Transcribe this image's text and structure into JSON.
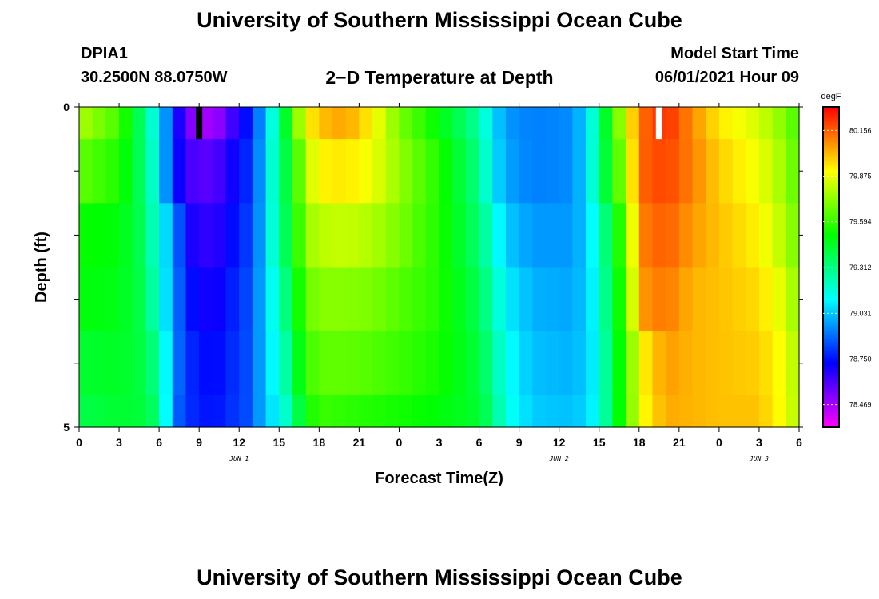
{
  "header": {
    "title": "University of Southern Mississippi Ocean Cube",
    "station_id": "DPIA1",
    "coords": "30.2500N  88.0750W",
    "plot_title": "2−D Temperature at Depth",
    "start_label": "Model Start Time",
    "start_value": "06/01/2021 Hour 09"
  },
  "footer": {
    "title": "University of Southern Mississippi Ocean Cube"
  },
  "chart_data": {
    "type": "heatmap",
    "xlabel": "Forecast Time(Z)",
    "ylabel": "Depth (ft)",
    "x_hours_range": [
      0,
      54
    ],
    "ylim": [
      0,
      5
    ],
    "y_tick_labels": [
      {
        "value": 0,
        "label": "0"
      },
      {
        "value": 5,
        "label": "5"
      }
    ],
    "x_tick_labels": [
      "0",
      "3",
      "6",
      "9",
      "12",
      "15",
      "18",
      "21",
      "0",
      "3",
      "6",
      "9",
      "12",
      "15",
      "18",
      "21",
      "0",
      "3",
      "6"
    ],
    "date_labels": [
      {
        "hour": 12,
        "label": "JUN 1"
      },
      {
        "hour": 36,
        "label": "JUN 2"
      },
      {
        "hour": 51,
        "label": "JUN 3"
      }
    ],
    "markers": [
      {
        "hour": 9,
        "color": "#000000"
      },
      {
        "hour": 43.5,
        "color": "#ffffff"
      }
    ],
    "colorbar": {
      "unit": "degF",
      "min": 78.33,
      "max": 80.3,
      "labels": [
        "80.156",
        "79.875",
        "79.594",
        "79.312",
        "79.031",
        "78.750",
        "78.469"
      ]
    },
    "depth_layers": [
      0.25,
      1,
      2,
      3,
      4,
      4.75
    ],
    "temperature_degF": {
      "hours": [
        0,
        3,
        5,
        6,
        7,
        8,
        10,
        13,
        14,
        15,
        16,
        17,
        18,
        20,
        22,
        24,
        27,
        30,
        31,
        32,
        34,
        37,
        38,
        39,
        40,
        41,
        42,
        44,
        46,
        48,
        51,
        53,
        54
      ],
      "columns": [
        [
          79.78,
          79.66,
          79.52,
          79.5,
          79.44,
          79.4
        ],
        [
          79.62,
          79.56,
          79.5,
          79.48,
          79.46,
          79.44
        ],
        [
          79.3,
          79.32,
          79.36,
          79.38,
          79.4,
          79.42
        ],
        [
          79.08,
          79.1,
          79.12,
          79.16,
          79.26,
          79.32
        ],
        [
          78.82,
          78.8,
          79.0,
          78.98,
          78.96,
          78.92
        ],
        [
          78.55,
          78.62,
          78.7,
          78.76,
          78.8,
          78.8
        ],
        [
          78.45,
          78.58,
          78.64,
          78.68,
          78.72,
          78.74
        ],
        [
          78.8,
          78.82,
          78.84,
          78.86,
          78.86,
          78.86
        ],
        [
          79.04,
          79.06,
          79.06,
          79.06,
          79.06,
          79.06
        ],
        [
          79.3,
          79.32,
          79.3,
          79.22,
          79.16,
          79.1
        ],
        [
          79.6,
          79.5,
          79.46,
          79.42,
          79.36,
          79.3
        ],
        [
          79.9,
          79.8,
          79.74,
          79.66,
          79.6,
          79.52
        ],
        [
          80.0,
          79.92,
          79.8,
          79.72,
          79.66,
          79.6
        ],
        [
          80.05,
          79.94,
          79.82,
          79.72,
          79.66,
          79.58
        ],
        [
          79.92,
          79.88,
          79.78,
          79.7,
          79.64,
          79.56
        ],
        [
          79.7,
          79.74,
          79.7,
          79.64,
          79.6,
          79.54
        ],
        [
          79.5,
          79.56,
          79.56,
          79.56,
          79.54,
          79.5
        ],
        [
          79.26,
          79.3,
          79.34,
          79.38,
          79.42,
          79.44
        ],
        [
          79.08,
          79.1,
          79.18,
          79.24,
          79.28,
          79.32
        ],
        [
          78.96,
          78.98,
          79.04,
          79.1,
          79.14,
          79.16
        ],
        [
          78.92,
          78.92,
          78.96,
          79.0,
          79.02,
          79.04
        ],
        [
          78.94,
          78.94,
          78.96,
          78.98,
          79.0,
          79.02
        ],
        [
          79.06,
          79.06,
          79.04,
          79.04,
          79.04,
          79.06
        ],
        [
          79.3,
          79.3,
          79.2,
          79.16,
          79.14,
          79.14
        ],
        [
          79.6,
          79.56,
          79.46,
          79.44,
          79.42,
          79.42
        ],
        [
          79.84,
          79.76,
          79.66,
          79.62,
          79.6,
          79.6
        ],
        [
          80.12,
          80.14,
          80.1,
          80.06,
          79.9,
          79.88
        ],
        [
          80.24,
          80.2,
          80.16,
          80.12,
          80.06,
          80.04
        ],
        [
          80.08,
          80.1,
          80.06,
          80.02,
          80.02,
          80.02
        ],
        [
          79.94,
          79.98,
          80.0,
          80.0,
          80.0,
          80.0
        ],
        [
          79.84,
          79.88,
          79.92,
          79.96,
          79.98,
          80.0
        ],
        [
          79.7,
          79.74,
          79.78,
          79.84,
          79.88,
          79.88
        ],
        [
          79.6,
          79.62,
          79.66,
          79.7,
          79.74,
          79.76
        ]
      ]
    }
  }
}
